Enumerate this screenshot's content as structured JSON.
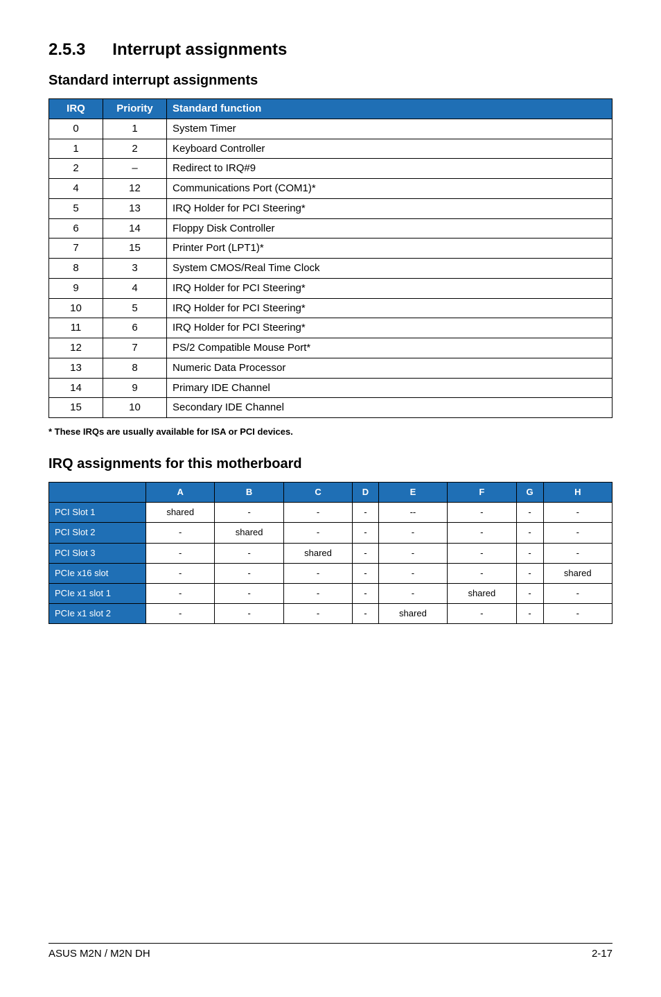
{
  "section": {
    "number": "2.5.3",
    "title": "Interrupt assignments"
  },
  "sub1": "Standard interrupt assignments",
  "irqHeaders": {
    "irq": "IRQ",
    "priority": "Priority",
    "func": "Standard function"
  },
  "irqRows": [
    {
      "irq": "0",
      "prio": "1",
      "func": "System Timer"
    },
    {
      "irq": "1",
      "prio": "2",
      "func": "Keyboard Controller"
    },
    {
      "irq": "2",
      "prio": "–",
      "func": "Redirect to IRQ#9"
    },
    {
      "irq": "4",
      "prio": "12",
      "func": "Communications Port (COM1)*"
    },
    {
      "irq": "5",
      "prio": "13",
      "func": "IRQ Holder for PCI Steering*"
    },
    {
      "irq": "6",
      "prio": "14",
      "func": "Floppy Disk Controller"
    },
    {
      "irq": "7",
      "prio": "15",
      "func": "Printer Port (LPT1)*"
    },
    {
      "irq": "8",
      "prio": "3",
      "func": "System CMOS/Real Time Clock"
    },
    {
      "irq": "9",
      "prio": "4",
      "func": "IRQ Holder for PCI Steering*"
    },
    {
      "irq": "10",
      "prio": "5",
      "func": "IRQ Holder for PCI Steering*"
    },
    {
      "irq": "11",
      "prio": "6",
      "func": "IRQ Holder for PCI Steering*"
    },
    {
      "irq": "12",
      "prio": "7",
      "func": "PS/2 Compatible Mouse Port*"
    },
    {
      "irq": "13",
      "prio": "8",
      "func": "Numeric Data Processor"
    },
    {
      "irq": "14",
      "prio": "9",
      "func": "Primary IDE Channel"
    },
    {
      "irq": "15",
      "prio": "10",
      "func": "Secondary IDE Channel"
    }
  ],
  "footnote": "* These IRQs are usually available for ISA or PCI devices.",
  "sub2": "IRQ assignments for this motherboard",
  "asgCols": [
    "A",
    "B",
    "C",
    "D",
    "E",
    "F",
    "G",
    "H"
  ],
  "asgRows": [
    {
      "label": "PCI Slot 1",
      "cells": [
        "shared",
        "-",
        "-",
        "-",
        "--",
        "-",
        "-",
        "-"
      ]
    },
    {
      "label": "PCI Slot 2",
      "cells": [
        "-",
        "shared",
        "-",
        "-",
        "-",
        "-",
        "-",
        "-"
      ]
    },
    {
      "label": "PCI Slot 3",
      "cells": [
        "-",
        "-",
        "shared",
        "-",
        "-",
        "-",
        "-",
        "-"
      ]
    },
    {
      "label": "PCIe x16 slot",
      "cells": [
        "-",
        "-",
        "-",
        "-",
        "-",
        "-",
        "-",
        "shared"
      ]
    },
    {
      "label": "PCIe x1 slot 1",
      "cells": [
        "-",
        "-",
        "-",
        "-",
        "-",
        "shared",
        "-",
        "-"
      ]
    },
    {
      "label": "PCIe x1 slot 2",
      "cells": [
        "-",
        "-",
        "-",
        "-",
        "shared",
        "-",
        "-",
        "-"
      ]
    }
  ],
  "footer": {
    "left": "ASUS M2N / M2N DH",
    "right": "2-17"
  },
  "colors": {
    "headerBg": "#1f6fb5",
    "headerFg": "#ffffff",
    "border": "#000000",
    "pageBg": "#ffffff",
    "text": "#000000"
  }
}
